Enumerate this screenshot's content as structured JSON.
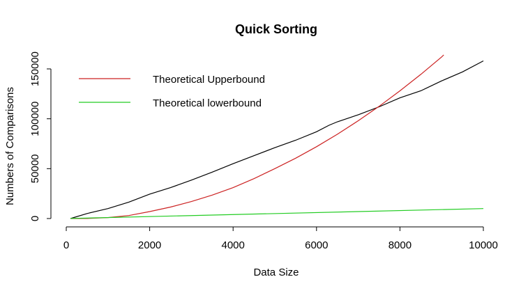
{
  "chart_data": {
    "type": "line",
    "title": "Quick Sorting",
    "xlabel": "Data Size",
    "ylabel": "Numbers of Comparisons",
    "xlim": [
      0,
      10000
    ],
    "ylim": [
      0,
      150000
    ],
    "x_ticks": [
      0,
      2000,
      4000,
      6000,
      8000,
      10000
    ],
    "y_ticks": [
      0,
      50000,
      100000,
      150000
    ],
    "grid": false,
    "legend_position": "top-left",
    "series": [
      {
        "name": "",
        "color": "#000000",
        "x": [
          100,
          500,
          1000,
          1500,
          2000,
          2500,
          3000,
          3500,
          4000,
          4500,
          5000,
          5500,
          6000,
          6300,
          6500,
          7000,
          7500,
          8000,
          8500,
          9000,
          9500,
          10000
        ],
        "y": [
          0,
          5000,
          10000,
          16500,
          24500,
          31000,
          38500,
          46500,
          55000,
          63000,
          71000,
          78500,
          87000,
          93500,
          97000,
          104000,
          112000,
          121000,
          128000,
          138000,
          147000,
          158000
        ]
      },
      {
        "name": "Theoretical Upperbound",
        "color": "#cc2222",
        "x": [
          100,
          500,
          1000,
          1500,
          2000,
          2500,
          3000,
          3500,
          4000,
          4500,
          5000,
          5500,
          6000,
          6500,
          7000,
          7500,
          8000,
          8500,
          9000,
          9050
        ],
        "y": [
          0,
          100,
          1000,
          3000,
          7000,
          11500,
          17000,
          23500,
          31000,
          40000,
          50000,
          60500,
          72000,
          84500,
          98000,
          112500,
          128000,
          144500,
          162000,
          164000
        ]
      },
      {
        "name": "Theoretical lowerbound",
        "color": "#22cc22",
        "x": [
          100,
          10000
        ],
        "y": [
          100,
          10000
        ]
      }
    ]
  }
}
